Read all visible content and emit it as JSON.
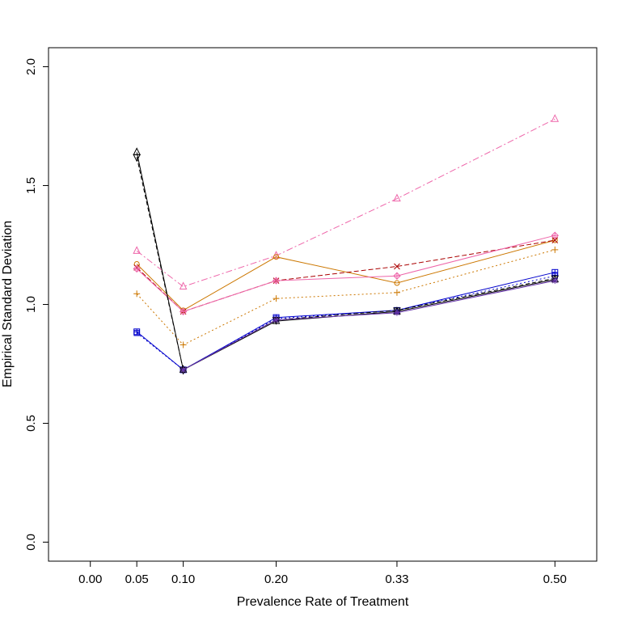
{
  "chart_data": {
    "type": "line",
    "title": "",
    "xlabel": "Prevalence Rate of Treatment",
    "ylabel": "Empirical Standard Deviation",
    "xlim": [
      -0.045,
      0.545
    ],
    "ylim": [
      -0.08,
      2.08
    ],
    "grid": false,
    "x_ticks": [
      0.0,
      0.05,
      0.1,
      0.2,
      0.33,
      0.5
    ],
    "x_tick_labels": [
      "0.00",
      "0.05",
      "0.10",
      "0.20",
      "0.33",
      "0.50"
    ],
    "y_ticks": [
      0.0,
      0.5,
      1.0,
      1.5,
      2.0
    ],
    "y_tick_labels": [
      "0.0",
      "0.5",
      "1.0",
      "1.5",
      "2.0"
    ],
    "x": [
      0.05,
      0.1,
      0.2,
      0.33,
      0.5
    ],
    "series": [
      {
        "color": "#ee66aa",
        "dash": "8,3,2,3",
        "marker": "triangle",
        "values": [
          1.225,
          1.075,
          1.205,
          1.445,
          1.78
        ]
      },
      {
        "color": "#cc7700",
        "dash": "",
        "marker": "circle",
        "values": [
          1.17,
          0.975,
          1.2,
          1.09,
          1.27
        ]
      },
      {
        "color": "#aa0000",
        "dash": "6,3",
        "marker": "x",
        "values": [
          1.155,
          0.97,
          1.1,
          1.16,
          1.27
        ]
      },
      {
        "color": "#ee66aa",
        "dash": "",
        "marker": "diamond-plus",
        "values": [
          1.15,
          0.97,
          1.1,
          1.12,
          1.29
        ]
      },
      {
        "color": "#cc7700",
        "dash": "2,3",
        "marker": "plus",
        "values": [
          1.045,
          0.83,
          1.025,
          1.05,
          1.23
        ]
      },
      {
        "color": "#0000cc",
        "dash": "",
        "marker": "square-plus",
        "values": [
          0.885,
          0.725,
          0.945,
          0.975,
          1.135
        ]
      },
      {
        "color": "#0000cc",
        "dash": "2,3",
        "marker": "square",
        "values": [
          0.88,
          0.725,
          0.94,
          0.975,
          1.12
        ]
      },
      {
        "color": "#000000",
        "dash": "",
        "marker": "triangle",
        "values": [
          1.64,
          0.725,
          0.93,
          0.97,
          1.105
        ]
      },
      {
        "color": "#000000",
        "dash": "5,3",
        "marker": "triangle-down",
        "values": [
          1.62,
          0.725,
          0.935,
          0.975,
          1.11
        ]
      },
      {
        "color": "#6633aa",
        "dash": "",
        "marker": "star",
        "values": [
          null,
          0.725,
          0.935,
          0.965,
          1.1
        ]
      }
    ]
  }
}
